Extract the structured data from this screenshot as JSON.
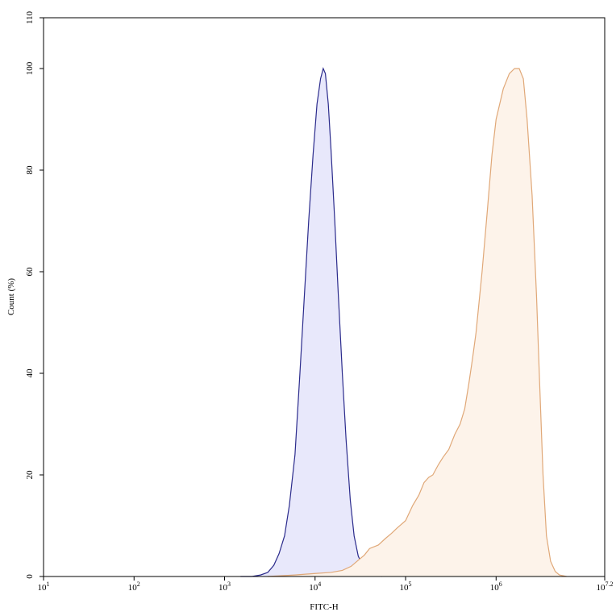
{
  "chart_data": {
    "type": "area",
    "xlabel": "FITC-H",
    "ylabel": "Count  (%)",
    "x_scale": "log10",
    "xlim": [
      10,
      15848932
    ],
    "ylim": [
      0,
      110
    ],
    "grid": false,
    "x_ticks": [
      {
        "value": 10,
        "base": "10",
        "exp": "1"
      },
      {
        "value": 100,
        "base": "10",
        "exp": "2"
      },
      {
        "value": 1000,
        "base": "10",
        "exp": "3"
      },
      {
        "value": 10000,
        "base": "10",
        "exp": "4"
      },
      {
        "value": 100000,
        "base": "10",
        "exp": "5"
      },
      {
        "value": 1000000,
        "base": "10",
        "exp": "6"
      },
      {
        "value": 15848932,
        "base": "10",
        "exp": "7.2"
      }
    ],
    "y_ticks": [
      "0",
      "20",
      "40",
      "60",
      "80",
      "100",
      "110"
    ],
    "series": [
      {
        "color": "#2b2b8c",
        "fill": "#e8e8fb",
        "points": [
          [
            1500,
            0
          ],
          [
            2000,
            0
          ],
          [
            2500,
            0.3
          ],
          [
            3000,
            0.8
          ],
          [
            3500,
            2.2
          ],
          [
            4000,
            4.5
          ],
          [
            4600,
            8
          ],
          [
            5200,
            14
          ],
          [
            6000,
            24
          ],
          [
            6800,
            40
          ],
          [
            7600,
            55
          ],
          [
            8500,
            70
          ],
          [
            9500,
            83
          ],
          [
            10500,
            93
          ],
          [
            11500,
            98
          ],
          [
            12300,
            100
          ],
          [
            13000,
            99
          ],
          [
            14000,
            93
          ],
          [
            15000,
            84
          ],
          [
            16500,
            70
          ],
          [
            18000,
            56
          ],
          [
            20000,
            40
          ],
          [
            22000,
            27
          ],
          [
            24500,
            15
          ],
          [
            27000,
            8
          ],
          [
            30000,
            4
          ],
          [
            34000,
            2
          ],
          [
            38000,
            1
          ],
          [
            45000,
            0.3
          ],
          [
            55000,
            0
          ]
        ]
      },
      {
        "color": "#e0a878",
        "fill": "#fdf3ea",
        "points": [
          [
            3000,
            0
          ],
          [
            6000,
            0.3
          ],
          [
            10000,
            0.6
          ],
          [
            15000,
            0.8
          ],
          [
            20000,
            1.2
          ],
          [
            25000,
            2
          ],
          [
            30000,
            3.2
          ],
          [
            35000,
            4.2
          ],
          [
            40000,
            5.5
          ],
          [
            50000,
            6.2
          ],
          [
            60000,
            7.5
          ],
          [
            70000,
            8.5
          ],
          [
            80000,
            9.5
          ],
          [
            100000,
            11
          ],
          [
            120000,
            14
          ],
          [
            140000,
            16
          ],
          [
            160000,
            18.5
          ],
          [
            180000,
            19.5
          ],
          [
            200000,
            20
          ],
          [
            230000,
            22
          ],
          [
            260000,
            23.5
          ],
          [
            300000,
            25
          ],
          [
            350000,
            28
          ],
          [
            400000,
            30
          ],
          [
            450000,
            33
          ],
          [
            500000,
            38
          ],
          [
            550000,
            43
          ],
          [
            600000,
            48
          ],
          [
            700000,
            60
          ],
          [
            800000,
            72
          ],
          [
            900000,
            83
          ],
          [
            1000000,
            90
          ],
          [
            1200000,
            96
          ],
          [
            1400000,
            99
          ],
          [
            1600000,
            100
          ],
          [
            1800000,
            100
          ],
          [
            2000000,
            98
          ],
          [
            2200000,
            90
          ],
          [
            2500000,
            75
          ],
          [
            2800000,
            55
          ],
          [
            3000000,
            40
          ],
          [
            3300000,
            20
          ],
          [
            3600000,
            8
          ],
          [
            4000000,
            3
          ],
          [
            4500000,
            1
          ],
          [
            5000000,
            0.3
          ],
          [
            6000000,
            0
          ]
        ]
      }
    ]
  }
}
